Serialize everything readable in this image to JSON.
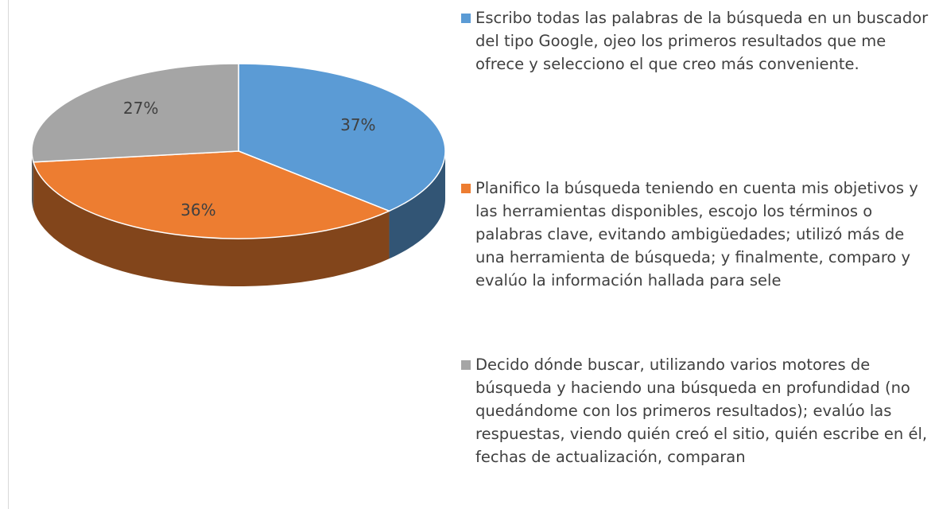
{
  "chart_data": {
    "type": "pie",
    "categories": [
      "Escribo todas las palabras de la búsqueda en un buscador del tipo Google, ojeo los primeros resultados que me ofrece y selecciono el que creo más conveniente.",
      "Planifico la búsqueda teniendo en cuenta mis objetivos y las herramientas disponibles, escojo los términos o palabras clave, evitando ambigüedades; utilizó más de una herramienta de búsqueda; y finalmente, comparo y evalúo la información hallada para sele",
      "Decido dónde buscar, utilizando  varios motores  de búsqueda  y haciendo una búsqueda  en profundidad (no quedándome con los primeros  resultados); evalúo las respuestas,  viendo quién creó el sitio, quién escribe en él, fechas de actualización, comparan"
    ],
    "values": [
      37,
      36,
      27
    ],
    "value_labels": [
      "37%",
      "36%",
      "27%"
    ],
    "colors": [
      "#5b9bd5",
      "#ed7d31",
      "#a5a5a5"
    ],
    "legend": "right"
  }
}
